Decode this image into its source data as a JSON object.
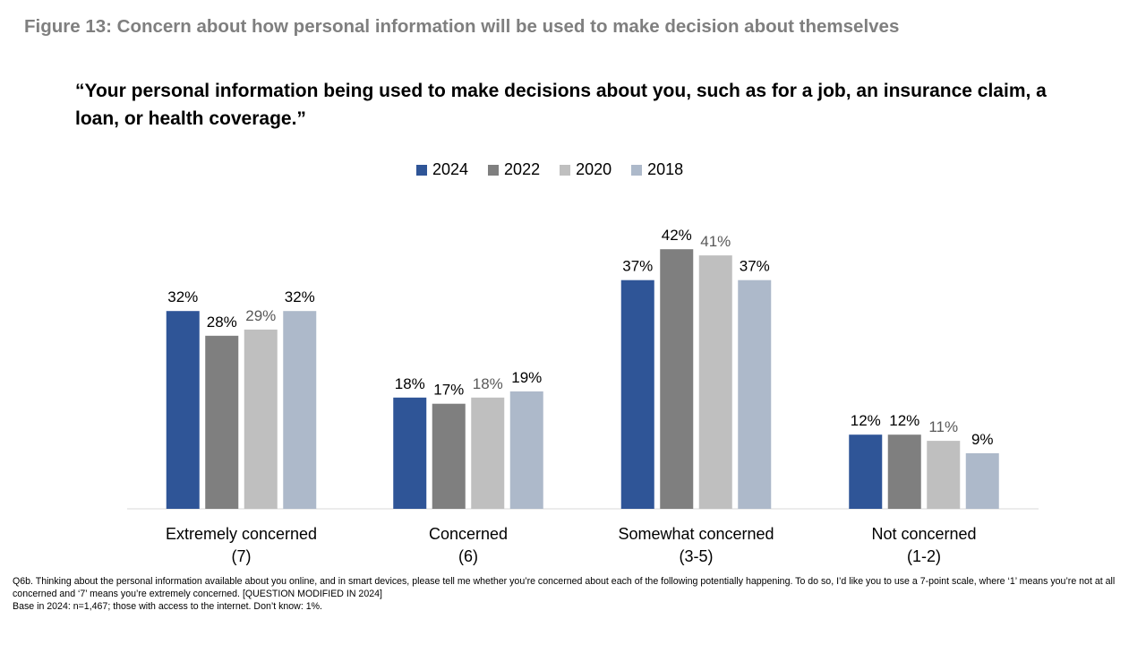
{
  "figure_title": "Figure 13: Concern about how personal information will be used to make decision about themselves",
  "chart_data": {
    "type": "bar",
    "title": "“Your personal information being used to make decisions about you, such as for a job, an insurance claim, a loan, or health coverage.”",
    "categories": [
      [
        "Extremely concerned",
        "(7)"
      ],
      [
        "Concerned",
        "(6)"
      ],
      [
        "Somewhat concerned",
        "(3-5)"
      ],
      [
        "Not concerned",
        "(1-2)"
      ]
    ],
    "series": [
      {
        "name": "2024",
        "color": "#2f5597",
        "label_color": "#000000",
        "values": [
          32,
          18,
          37,
          12
        ]
      },
      {
        "name": "2022",
        "color": "#7f7f7f",
        "label_color": "#000000",
        "values": [
          28,
          17,
          42,
          12
        ]
      },
      {
        "name": "2020",
        "color": "#bfbfbf",
        "label_color": "#595959",
        "values": [
          29,
          18,
          41,
          11
        ]
      },
      {
        "name": "2018",
        "color": "#adb9ca",
        "label_color": "#000000",
        "values": [
          32,
          19,
          37,
          9
        ]
      }
    ],
    "value_suffix": "%",
    "xlabel": "",
    "ylabel": "",
    "ylim": [
      0,
      45
    ],
    "grid": false,
    "legend_position": "top"
  },
  "footnote": {
    "question": "Q6b. Thinking about the personal information available about you online, and in smart devices, please tell me whether you’re concerned about each of the following potentially happening. To do so, I’d like you to use a 7-point scale, where ‘1’ means you’re not at all concerned and ‘7’ means you’re extremely concerned. [QUESTION MODIFIED IN 2024]",
    "base": "Base in 2024: n=1,467; those with access to the internet. Don’t know: 1%."
  }
}
